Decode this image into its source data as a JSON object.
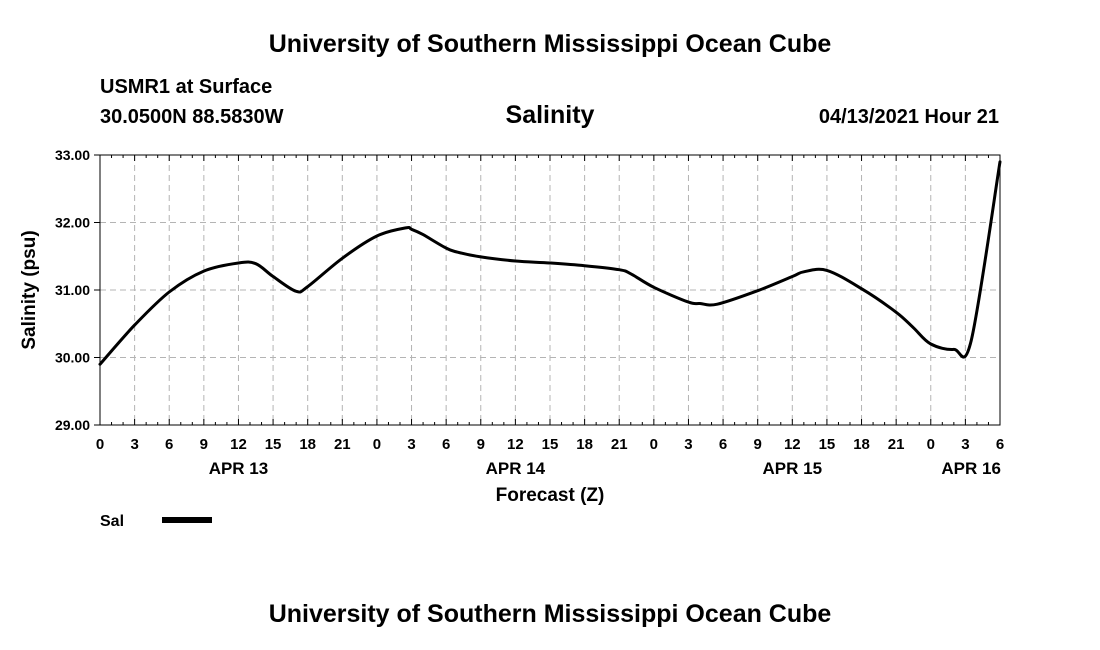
{
  "page": {
    "title_top": "University of Southern Mississippi Ocean Cube",
    "title_bottom": "University of Southern Mississippi Ocean Cube",
    "station": "USMR1 at Surface",
    "coords": "30.0500N  88.5830W",
    "datetime": "04/13/2021 Hour 21"
  },
  "colors": {
    "line": "#000000",
    "grid": "#b4b4b4",
    "background": "#ffffff"
  },
  "chart_data": {
    "type": "line",
    "title": "Salinity",
    "xlabel": "Forecast (Z)",
    "ylabel": "Salinity (psu)",
    "xlim": [
      0,
      78
    ],
    "ylim": [
      29,
      33
    ],
    "yticks": [
      29,
      30,
      31,
      32,
      33
    ],
    "ytick_labels": [
      "29.00",
      "30.00",
      "31.00",
      "32.00",
      "33.00"
    ],
    "xticks": [
      0,
      3,
      6,
      9,
      12,
      15,
      18,
      21,
      24,
      27,
      30,
      33,
      36,
      39,
      42,
      45,
      48,
      51,
      54,
      57,
      60,
      63,
      66,
      69,
      72,
      75,
      78
    ],
    "xtick_labels": [
      "0",
      "3",
      "6",
      "9",
      "12",
      "15",
      "18",
      "21",
      "0",
      "3",
      "6",
      "9",
      "12",
      "15",
      "18",
      "21",
      "0",
      "3",
      "6",
      "9",
      "12",
      "15",
      "18",
      "21",
      "0",
      "3",
      "6"
    ],
    "day_labels": [
      {
        "x": 12,
        "label": "APR 13"
      },
      {
        "x": 36,
        "label": "APR 14"
      },
      {
        "x": 60,
        "label": "APR 15"
      },
      {
        "x": 75.5,
        "label": "APR 16"
      }
    ],
    "legend": {
      "label": "Sal",
      "position": "bottom-left"
    },
    "series": [
      {
        "name": "Sal",
        "x": [
          0,
          3,
          6,
          9,
          12,
          13.5,
          15,
          17,
          18,
          21,
          24,
          26.5,
          27,
          28,
          30,
          31,
          33,
          36,
          39,
          42,
          45,
          46,
          48,
          51,
          52,
          53.5,
          57,
          60,
          61,
          63,
          66,
          69,
          70.5,
          72,
          74,
          75.5,
          78
        ],
        "y": [
          29.9,
          30.48,
          30.97,
          31.28,
          31.4,
          31.39,
          31.2,
          30.98,
          31.05,
          31.47,
          31.8,
          31.92,
          31.9,
          31.82,
          31.62,
          31.56,
          31.49,
          31.43,
          31.4,
          31.36,
          31.3,
          31.24,
          31.04,
          30.82,
          30.8,
          30.79,
          30.99,
          31.2,
          31.27,
          31.29,
          31.02,
          30.67,
          30.44,
          30.2,
          30.12,
          30.25,
          32.9
        ]
      }
    ]
  }
}
